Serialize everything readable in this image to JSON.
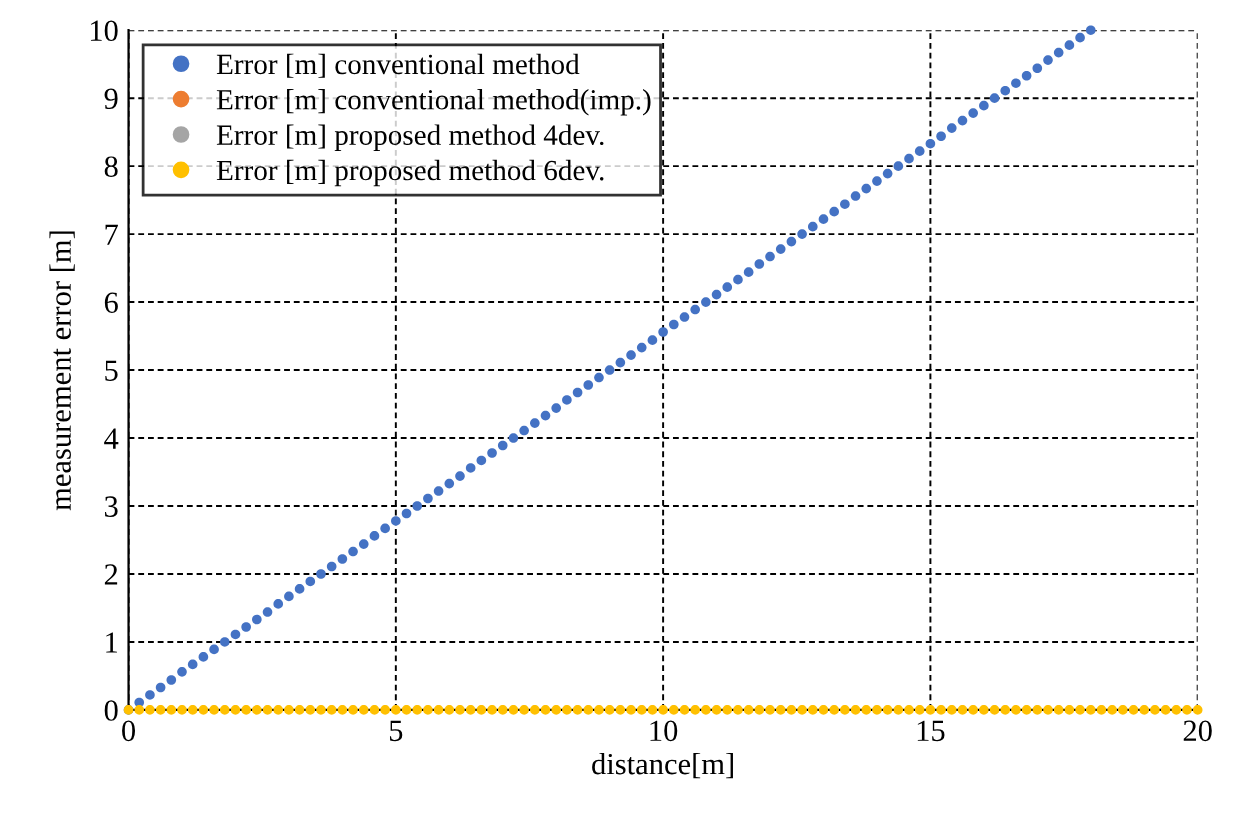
{
  "chart_data": {
    "type": "scatter",
    "xlabel": "distance[m]",
    "ylabel": "measurement error [m]",
    "xlim": [
      0,
      20
    ],
    "xticks": [
      0,
      5,
      10,
      15,
      20
    ],
    "ylim": [
      0,
      10
    ],
    "yticks": [
      0,
      1,
      2,
      3,
      4,
      5,
      6,
      7,
      8,
      9,
      10
    ],
    "grid": true,
    "legend": "top left",
    "marker": "circle",
    "x": [
      0,
      0.2,
      0.4,
      0.6,
      0.8,
      1,
      1.2,
      1.4,
      1.6,
      1.8,
      2,
      2.2,
      2.4,
      2.6,
      2.8,
      3,
      3.2,
      3.4,
      3.6,
      3.8,
      4,
      4.2,
      4.4,
      4.6,
      4.8,
      5,
      5.2,
      5.4,
      5.6,
      5.8,
      6,
      6.2,
      6.4,
      6.6,
      6.8,
      7,
      7.2,
      7.4,
      7.6,
      7.8,
      8,
      8.2,
      8.4,
      8.6,
      8.8,
      9,
      9.2,
      9.4,
      9.6,
      9.8,
      10,
      10.2,
      10.4,
      10.6,
      10.8,
      11,
      11.2,
      11.4,
      11.6,
      11.8,
      12,
      12.2,
      12.4,
      12.6,
      12.8,
      13,
      13.2,
      13.4,
      13.6,
      13.8,
      14,
      14.2,
      14.4,
      14.6,
      14.8,
      15,
      15.2,
      15.4,
      15.6,
      15.8,
      16,
      16.2,
      16.4,
      16.6,
      16.8,
      17,
      17.2,
      17.4,
      17.6,
      17.8,
      18,
      18.2,
      18.4,
      18.6,
      18.8,
      19,
      19.2,
      19.4,
      19.6,
      19.8,
      20
    ],
    "series": [
      {
        "name": "Error [m] conventional method",
        "color": "#4472c4",
        "values": [
          0,
          0.11,
          0.22,
          0.33,
          0.44,
          0.56,
          0.67,
          0.78,
          0.89,
          1,
          1.11,
          1.22,
          1.33,
          1.44,
          1.56,
          1.67,
          1.78,
          1.89,
          2,
          2.11,
          2.22,
          2.33,
          2.44,
          2.56,
          2.67,
          2.78,
          2.89,
          3,
          3.11,
          3.22,
          3.33,
          3.44,
          3.56,
          3.67,
          3.78,
          3.89,
          4,
          4.11,
          4.22,
          4.33,
          4.44,
          4.56,
          4.67,
          4.78,
          4.89,
          5,
          5.11,
          5.22,
          5.33,
          5.44,
          5.56,
          5.67,
          5.78,
          5.89,
          6,
          6.11,
          6.22,
          6.33,
          6.44,
          6.56,
          6.67,
          6.78,
          6.89,
          7,
          7.11,
          7.22,
          7.33,
          7.44,
          7.56,
          7.67,
          7.78,
          7.89,
          8,
          8.11,
          8.22,
          8.33,
          8.44,
          8.56,
          8.67,
          8.78,
          8.89,
          9,
          9.11,
          9.22,
          9.33,
          9.44,
          9.56,
          9.67,
          9.78,
          9.89,
          10,
          null,
          null,
          null,
          null,
          null,
          null,
          null,
          null,
          null,
          null
        ]
      },
      {
        "name": "Error [m] conventional method(imp.)",
        "color": "#ed7d31",
        "values": [
          null,
          null,
          null,
          null,
          null,
          null,
          null,
          null,
          null,
          null,
          null,
          null,
          null,
          null,
          null,
          null,
          null,
          null,
          null,
          null,
          null,
          null,
          null,
          null,
          null,
          null,
          null,
          null,
          null,
          null,
          null,
          null,
          null,
          null,
          null,
          null,
          null,
          null,
          null,
          null,
          null,
          null,
          null,
          null,
          null,
          null,
          null,
          null,
          null,
          null,
          null,
          null,
          null,
          null,
          null,
          null,
          null,
          null,
          null,
          null,
          null,
          null,
          null,
          null,
          null,
          null,
          null,
          null,
          null,
          null,
          null,
          null,
          null,
          null,
          null,
          null,
          null,
          null,
          null,
          null,
          null,
          null,
          null,
          null,
          null,
          null,
          null,
          null,
          null,
          null,
          null,
          null,
          null,
          null,
          null,
          null,
          null,
          null,
          null,
          null,
          null
        ]
      },
      {
        "name": "Error [m] proposed method 4dev.",
        "color": "#a5a5a5",
        "values": [
          null,
          null,
          null,
          null,
          null,
          null,
          null,
          null,
          null,
          null,
          null,
          null,
          null,
          null,
          null,
          null,
          null,
          null,
          null,
          null,
          null,
          null,
          null,
          null,
          null,
          null,
          null,
          null,
          null,
          null,
          null,
          null,
          null,
          null,
          null,
          null,
          null,
          null,
          null,
          null,
          null,
          null,
          null,
          null,
          null,
          null,
          null,
          null,
          null,
          null,
          null,
          null,
          null,
          null,
          null,
          null,
          null,
          null,
          null,
          null,
          null,
          null,
          null,
          null,
          null,
          null,
          null,
          null,
          null,
          null,
          null,
          null,
          null,
          null,
          null,
          null,
          null,
          null,
          null,
          null,
          null,
          null,
          null,
          null,
          null,
          null,
          null,
          null,
          null,
          null,
          null,
          null,
          null,
          null,
          null,
          null,
          null,
          null,
          null,
          null,
          null
        ]
      },
      {
        "name": "Error [m] proposed method 6dev.",
        "color": "#ffc000",
        "values": [
          0,
          0,
          0,
          0,
          0,
          0,
          0,
          0,
          0,
          0,
          0,
          0,
          0,
          0,
          0,
          0,
          0,
          0,
          0,
          0,
          0,
          0,
          0,
          0,
          0,
          0,
          0,
          0,
          0,
          0,
          0,
          0,
          0,
          0,
          0,
          0,
          0,
          0,
          0,
          0,
          0,
          0,
          0,
          0,
          0,
          0,
          0,
          0,
          0,
          0,
          0,
          0,
          0,
          0,
          0,
          0,
          0,
          0,
          0,
          0,
          0,
          0,
          0,
          0,
          0,
          0,
          0,
          0,
          0,
          0,
          0,
          0,
          0,
          0,
          0,
          0,
          0,
          0,
          0,
          0,
          0,
          0,
          0,
          0,
          0,
          0,
          0,
          0,
          0,
          0,
          0,
          0,
          0,
          0,
          0,
          0,
          0,
          0,
          0,
          0,
          0
        ]
      }
    ]
  }
}
